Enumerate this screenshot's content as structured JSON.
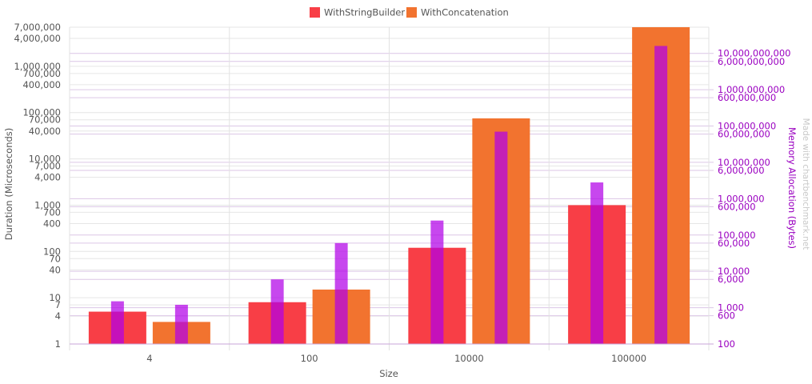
{
  "chart_data": {
    "type": "bar",
    "x_title": "Size",
    "y_left_title": "Duration (Microseconds)",
    "y_right_title": "Memory Allocation (Bytes)",
    "categories": [
      "4",
      "100",
      "10000",
      "100000"
    ],
    "y_left_scale": "log",
    "y_left_range": [
      1,
      7000000
    ],
    "y_left_ticks": [
      1,
      4,
      7,
      10,
      40,
      70,
      100,
      400,
      700,
      1000,
      4000,
      7000,
      10000,
      40000,
      70000,
      100000,
      400000,
      700000,
      1000000,
      4000000,
      7000000
    ],
    "y_left_tick_labels": [
      "1",
      "4",
      "7",
      "10",
      "40",
      "70",
      "100",
      "400",
      "700",
      "1,000",
      "4,000",
      "7,000",
      "10,000",
      "40,000",
      "70,000",
      "100,000",
      "400,000",
      "700,000",
      "1,000,000",
      "4,000,000",
      "7,000,000"
    ],
    "y_right_scale": "log",
    "y_right_ticks": [
      100,
      600,
      1000,
      6000,
      10000,
      60000,
      100000,
      600000,
      1000000,
      6000000,
      10000000,
      60000000,
      100000000,
      600000000,
      1000000000,
      6000000000,
      10000000000
    ],
    "y_right_tick_labels": [
      "100",
      "600",
      "1,000",
      "6,000",
      "10,000",
      "60,000",
      "100,000",
      "600,000",
      "1,000,000",
      "6,000,000",
      "10,000,000",
      "60,000,000",
      "100,000,000",
      "600,000,000",
      "1,000,000,000",
      "6,000,000,000",
      "10,000,000,000"
    ],
    "grid": true,
    "legend_position": "top-center",
    "series": [
      {
        "name": "WithStringBuilder",
        "color": "#f83e46",
        "values": [
          5,
          8,
          120,
          1000
        ],
        "allocated": [
          1500,
          6000,
          250000,
          2800000
        ]
      },
      {
        "name": "WithConcatenation",
        "color": "#f2732f",
        "values": [
          3,
          15,
          75000,
          7000000
        ],
        "allocated": [
          1200,
          60000,
          70000000,
          16000000000
        ]
      }
    ],
    "allocation_color": "#b200e8",
    "watermark": "Made with chartbenchmark.net"
  }
}
